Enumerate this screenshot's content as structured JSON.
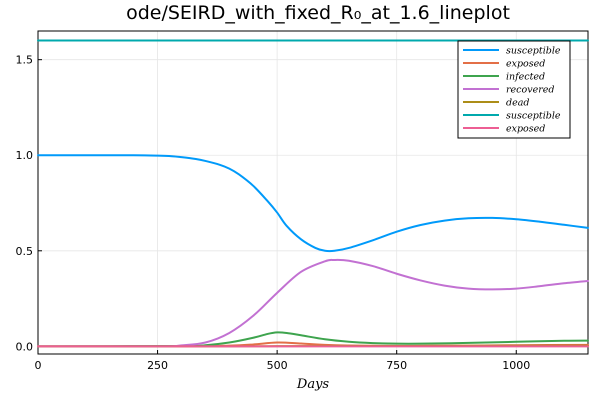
{
  "chart_data": {
    "type": "line",
    "title": "ode/SEIRD_with_fixed_R₀_at_1.6_lineplot",
    "xlabel": "Days",
    "ylabel": "",
    "xlim": [
      0,
      1150
    ],
    "ylim": [
      -0.04,
      1.65
    ],
    "xticks": [
      0,
      250,
      500,
      750,
      1000
    ],
    "xtick_labels": [
      "0",
      "250",
      "500",
      "750",
      "1000"
    ],
    "yticks": [
      0.0,
      0.5,
      1.0,
      1.5
    ],
    "ytick_labels": [
      "0.0",
      "0.5",
      "1.0",
      "1.5"
    ],
    "grid": true,
    "legend_position": "top-right",
    "series": [
      {
        "name": "susceptible",
        "color": "#009AFA",
        "x": [
          0,
          100,
          200,
          250,
          280,
          300,
          330,
          350,
          380,
          400,
          420,
          450,
          480,
          500,
          520,
          550,
          580,
          600,
          620,
          650,
          700,
          750,
          800,
          850,
          900,
          950,
          1000,
          1050,
          1100,
          1150
        ],
        "y": [
          1.0,
          1.0,
          1.0,
          0.998,
          0.995,
          0.99,
          0.98,
          0.97,
          0.95,
          0.93,
          0.9,
          0.84,
          0.76,
          0.7,
          0.63,
          0.56,
          0.515,
          0.5,
          0.5,
          0.515,
          0.555,
          0.6,
          0.635,
          0.658,
          0.67,
          0.672,
          0.665,
          0.652,
          0.636,
          0.62
        ]
      },
      {
        "name": "exposed",
        "color": "#E36F47",
        "x": [
          0,
          300,
          400,
          450,
          500,
          550,
          600,
          700,
          800,
          900,
          1000,
          1150
        ],
        "y": [
          0.0,
          0.0,
          0.004,
          0.01,
          0.02,
          0.015,
          0.008,
          0.003,
          0.003,
          0.004,
          0.006,
          0.008
        ]
      },
      {
        "name": "infected",
        "color": "#3EA44E",
        "x": [
          0,
          300,
          350,
          400,
          450,
          480,
          500,
          520,
          550,
          600,
          650,
          700,
          750,
          800,
          900,
          1000,
          1100,
          1150
        ],
        "y": [
          0.0,
          0.002,
          0.006,
          0.02,
          0.045,
          0.065,
          0.073,
          0.07,
          0.058,
          0.037,
          0.024,
          0.017,
          0.014,
          0.014,
          0.018,
          0.024,
          0.029,
          0.03
        ]
      },
      {
        "name": "recovered",
        "color": "#C271D2",
        "x": [
          0,
          250,
          300,
          350,
          400,
          450,
          500,
          550,
          600,
          620,
          650,
          700,
          750,
          800,
          850,
          900,
          950,
          1000,
          1050,
          1100,
          1150
        ],
        "y": [
          0.0,
          0.0,
          0.005,
          0.02,
          0.07,
          0.16,
          0.28,
          0.39,
          0.445,
          0.452,
          0.448,
          0.42,
          0.38,
          0.345,
          0.318,
          0.302,
          0.298,
          0.302,
          0.315,
          0.33,
          0.342
        ]
      },
      {
        "name": "dead",
        "color": "#AC8D18",
        "x": [
          0,
          400,
          500,
          600,
          800,
          1000,
          1150
        ],
        "y": [
          0.0,
          0.0,
          0.001,
          0.002,
          0.002,
          0.003,
          0.003
        ]
      },
      {
        "name": "susceptible",
        "color": "#00A9AD",
        "x": [
          0,
          1150
        ],
        "y": [
          1.6,
          1.6
        ]
      },
      {
        "name": "exposed",
        "color": "#ED5E93",
        "x": [
          0,
          1150
        ],
        "y": [
          0.0,
          0.0
        ]
      }
    ]
  }
}
